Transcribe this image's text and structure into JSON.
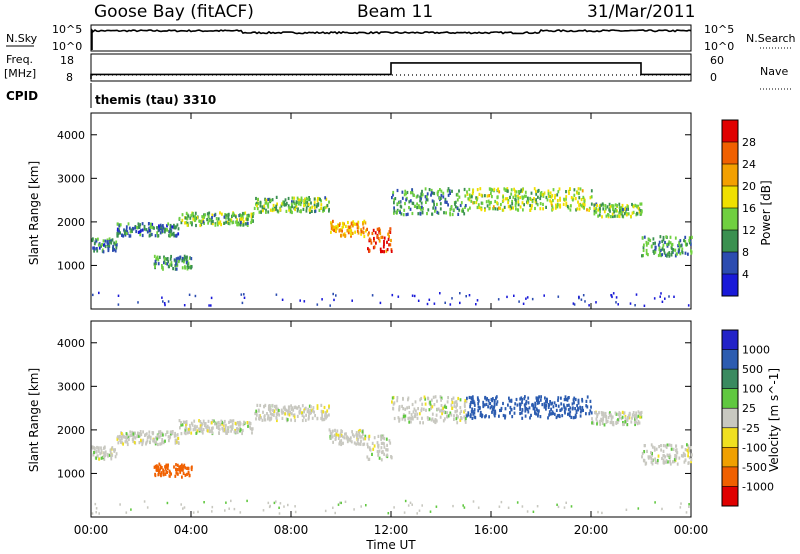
{
  "header": {
    "station": "Goose Bay (fitACF)",
    "beam": "Beam 11",
    "date": "31/Mar/2011"
  },
  "noise_panel": {
    "left_label": "N.Sky",
    "left_ticks": [
      "10^5",
      "10^0"
    ],
    "right_ticks": [
      "10^5",
      "10^0"
    ],
    "right_label": "N.Search"
  },
  "freq_panel": {
    "left_label_1": "Freq.",
    "left_label_2": "[MHz]",
    "left_ticks": [
      "18",
      "8"
    ],
    "right_ticks": [
      "60",
      "0"
    ],
    "right_label": "Nave"
  },
  "cpid": {
    "label": "CPID",
    "value": "themis (tau) 3310"
  },
  "axes": {
    "ylabel": "Slant Range [km]",
    "xlabel": "Time UT",
    "y_ticks": [
      "4000",
      "3000",
      "2000",
      "1000"
    ],
    "x_ticks": [
      "00:00",
      "04:00",
      "08:00",
      "12:00",
      "16:00",
      "20:00",
      "00:00"
    ]
  },
  "power_colorbar": {
    "label": "Power [dB]",
    "ticks": [
      "28",
      "24",
      "20",
      "16",
      "12",
      "8",
      "4"
    ],
    "colors": [
      "#e00000",
      "#f06000",
      "#f3a000",
      "#f0e000",
      "#70d040",
      "#3a9050",
      "#2c4cb0",
      "#1a1ad8"
    ]
  },
  "velocity_colorbar": {
    "label": "Velocity [m s^-1]",
    "ticks": [
      "1000",
      "500",
      "100",
      "25",
      "-25",
      "-100",
      "-500",
      "-1000"
    ],
    "colors": [
      "#2222c8",
      "#2c5cb0",
      "#3a8a60",
      "#60c840",
      "#c8c8c0",
      "#f0e020",
      "#f0a000",
      "#f06000",
      "#e00000"
    ]
  },
  "chart_data": {
    "type": "heatmap",
    "x_range_hours": [
      0,
      24
    ],
    "y_range_km": [
      0,
      4500
    ],
    "noise_log_range": [
      0,
      5
    ],
    "freq_range_mhz": [
      8,
      18
    ],
    "nave_range": [
      0,
      60
    ],
    "freq_steps": [
      {
        "from": 0,
        "to": 12,
        "mhz": 10
      },
      {
        "from": 12,
        "to": 22,
        "mhz": 15
      },
      {
        "from": 22,
        "to": 24,
        "mhz": 10
      }
    ],
    "scatter_regions": [
      {
        "t": [
          0.0,
          1.0
        ],
        "r": [
          1350,
          1650
        ],
        "power": 8,
        "velocity": 0
      },
      {
        "t": [
          1.0,
          3.5
        ],
        "r": [
          1700,
          2000
        ],
        "power": 8,
        "velocity": 0
      },
      {
        "t": [
          2.5,
          4.0
        ],
        "r": [
          950,
          1250
        ],
        "power": 10,
        "velocity": -400
      },
      {
        "t": [
          3.5,
          6.5
        ],
        "r": [
          1950,
          2250
        ],
        "power": 12,
        "velocity": 0
      },
      {
        "t": [
          6.5,
          9.5
        ],
        "r": [
          2250,
          2600
        ],
        "power": 12,
        "velocity": 0
      },
      {
        "t": [
          9.5,
          11.0
        ],
        "r": [
          1700,
          2050
        ],
        "power": 20,
        "velocity": 0
      },
      {
        "t": [
          11.0,
          12.0
        ],
        "r": [
          1350,
          1900
        ],
        "power": 26,
        "velocity": 0
      },
      {
        "t": [
          12.0,
          15.0
        ],
        "r": [
          2200,
          2800
        ],
        "power": 10,
        "velocity": 0
      },
      {
        "t": [
          15.0,
          20.0
        ],
        "r": [
          2300,
          2800
        ],
        "power": 14,
        "velocity": 300
      },
      {
        "t": [
          20.0,
          22.0
        ],
        "r": [
          2150,
          2450
        ],
        "power": 12,
        "velocity": 0
      },
      {
        "t": [
          22.0,
          24.0
        ],
        "r": [
          1250,
          1700
        ],
        "power": 10,
        "velocity": 0
      }
    ]
  }
}
